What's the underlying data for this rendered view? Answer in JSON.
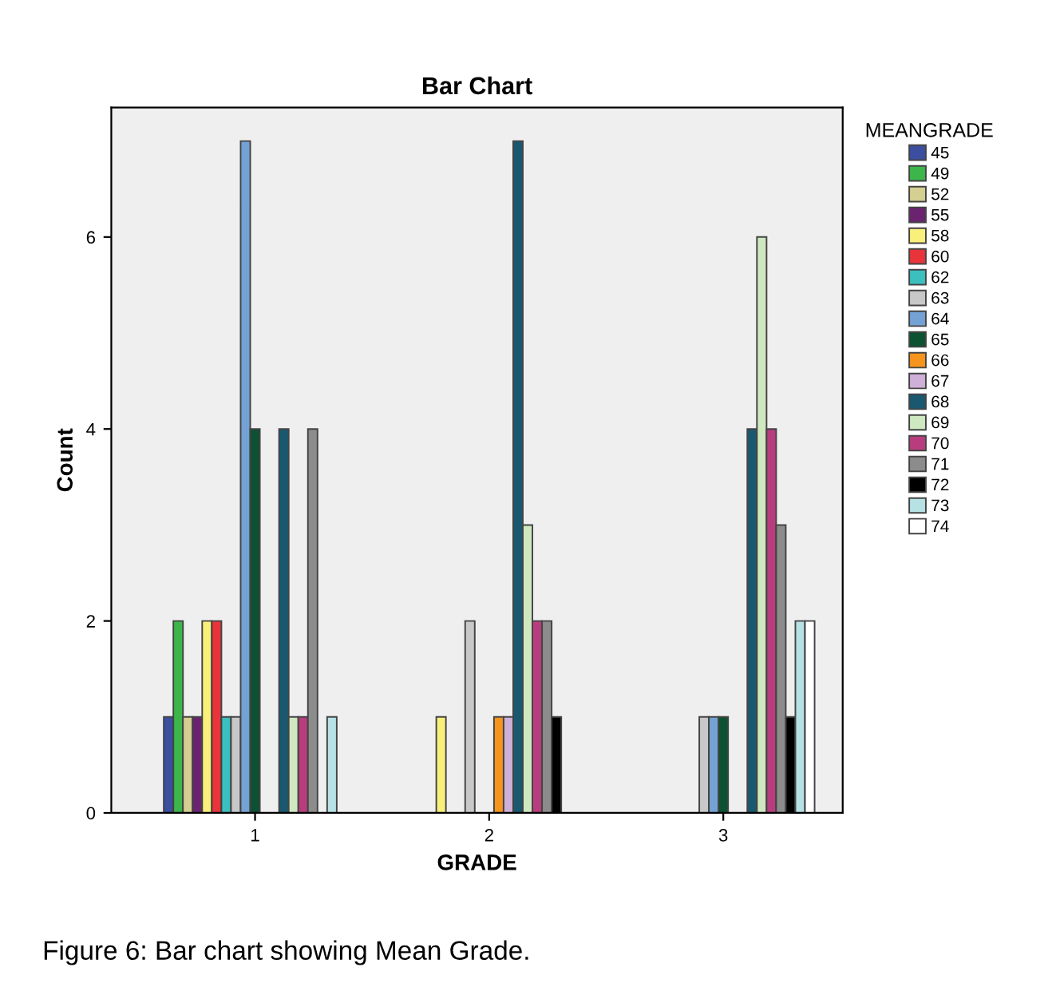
{
  "chart_data": {
    "type": "bar",
    "title": "Bar Chart",
    "xlabel": "GRADE",
    "ylabel": "Count",
    "legend_title": "MEANGRADE",
    "categories": [
      "1",
      "2",
      "3"
    ],
    "series": [
      {
        "name": "45",
        "color": "#3b4ea0",
        "values": [
          1,
          null,
          null
        ]
      },
      {
        "name": "49",
        "color": "#3cb64a",
        "values": [
          2,
          null,
          null
        ]
      },
      {
        "name": "52",
        "color": "#d5cf91",
        "values": [
          1,
          null,
          null
        ]
      },
      {
        "name": "55",
        "color": "#6b2271",
        "values": [
          1,
          null,
          null
        ]
      },
      {
        "name": "58",
        "color": "#f8f07a",
        "values": [
          2,
          1,
          null
        ]
      },
      {
        "name": "60",
        "color": "#e8343a",
        "values": [
          2,
          null,
          null
        ]
      },
      {
        "name": "62",
        "color": "#3bbfbf",
        "values": [
          1,
          null,
          null
        ]
      },
      {
        "name": "63",
        "color": "#c8c8c8",
        "values": [
          1,
          2,
          1
        ]
      },
      {
        "name": "64",
        "color": "#74a2d4",
        "values": [
          7,
          null,
          1
        ]
      },
      {
        "name": "65",
        "color": "#0b5132",
        "values": [
          4,
          null,
          1
        ]
      },
      {
        "name": "66",
        "color": "#f7941d",
        "values": [
          null,
          1,
          null
        ]
      },
      {
        "name": "67",
        "color": "#cfb0d8",
        "values": [
          null,
          1,
          null
        ]
      },
      {
        "name": "68",
        "color": "#1a5870",
        "values": [
          4,
          7,
          4
        ]
      },
      {
        "name": "69",
        "color": "#cfe8c0",
        "values": [
          1,
          3,
          6
        ]
      },
      {
        "name": "70",
        "color": "#b93d7e",
        "values": [
          1,
          2,
          4
        ]
      },
      {
        "name": "71",
        "color": "#8c8c8c",
        "values": [
          4,
          2,
          3
        ]
      },
      {
        "name": "72",
        "color": "#000000",
        "values": [
          null,
          1,
          1
        ]
      },
      {
        "name": "73",
        "color": "#b6e2e6",
        "values": [
          1,
          null,
          2
        ]
      },
      {
        "name": "74",
        "color": "#ffffff",
        "values": [
          null,
          null,
          2
        ]
      }
    ],
    "ylim": [
      0,
      7.35
    ],
    "yticks": [
      0,
      2,
      4,
      6
    ],
    "grid": false,
    "legend": "right",
    "annotations": [
      "Figure 6: Bar chart showing Mean Grade."
    ]
  }
}
